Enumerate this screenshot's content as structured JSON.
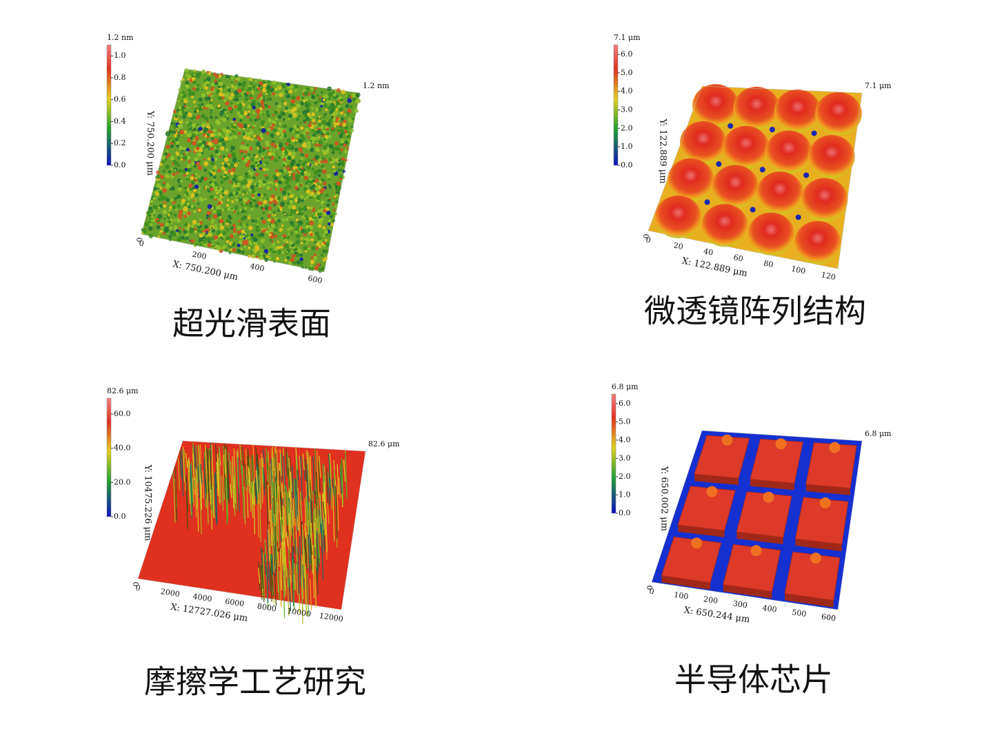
{
  "panels": [
    {
      "caption": "超光滑表面",
      "colorbar": {
        "max_label": "1.2 nm",
        "ticks": [
          "1.0",
          "0.8",
          "0.6",
          "0.4",
          "0.2",
          "0.0"
        ]
      },
      "z_label": "1.2 nm",
      "x_axis": {
        "label": "X: 750.200 μm",
        "ticks": [
          "0",
          "200",
          "400",
          "600"
        ]
      },
      "y_axis": {
        "label": "Y: 750.200 μm",
        "ticks": [
          "0"
        ]
      }
    },
    {
      "caption": "微透镜阵列结构",
      "colorbar": {
        "max_label": "7.1 μm",
        "ticks": [
          "6.0",
          "5.0",
          "4.0",
          "3.0",
          "2.0",
          "1.0",
          "0.0"
        ]
      },
      "z_label": "7.1 μm",
      "x_axis": {
        "label": "X: 122.889 μm",
        "ticks": [
          "0",
          "20",
          "40",
          "60",
          "80",
          "100",
          "120"
        ]
      },
      "y_axis": {
        "label": "Y: 122.889 μm",
        "ticks": [
          "0"
        ]
      }
    },
    {
      "caption": "摩擦学工艺研究",
      "colorbar": {
        "max_label": "82.6 μm",
        "ticks": [
          "60.0",
          "40.0",
          "20.0",
          "0.0"
        ]
      },
      "z_label": "82.6 μm",
      "x_axis": {
        "label": "X: 12727.026 μm",
        "ticks": [
          "0",
          "2000",
          "4000",
          "6000",
          "8000",
          "10000",
          "12000"
        ]
      },
      "y_axis": {
        "label": "Y: 10475.226 μm",
        "ticks": [
          "0"
        ]
      }
    },
    {
      "caption": "半导体芯片",
      "colorbar": {
        "max_label": "6.8 μm",
        "ticks": [
          "6.0",
          "5.0",
          "4.0",
          "3.0",
          "2.0",
          "1.0",
          "0.0"
        ]
      },
      "z_label": "6.8 μm",
      "x_axis": {
        "label": "X: 650.244 μm",
        "ticks": [
          "0",
          "100",
          "200",
          "300",
          "400",
          "500",
          "600"
        ]
      },
      "y_axis": {
        "label": "Y: 650.002 μm",
        "ticks": [
          "0"
        ]
      }
    }
  ]
}
